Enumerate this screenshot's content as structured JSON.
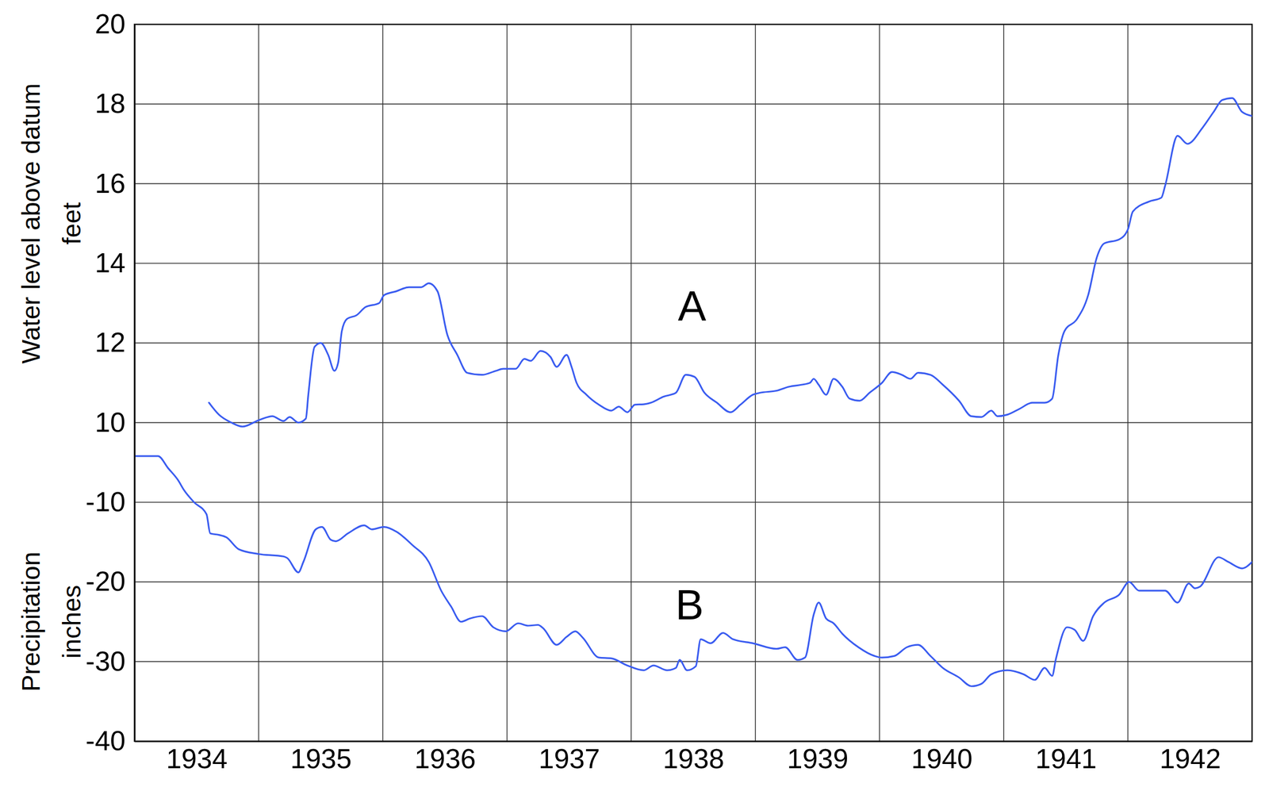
{
  "chart_data": {
    "type": "line",
    "ylabel": [
      "Water level above datum",
      "feet"
    ],
    "y2label": [
      "Precipitation",
      "inches"
    ],
    "xlim": [
      1934,
      1943
    ],
    "xticks": [
      {
        "value": 1934.5,
        "label": "1934"
      },
      {
        "value": 1935.5,
        "label": "1935"
      },
      {
        "value": 1936.5,
        "label": "1936"
      },
      {
        "value": 1937.5,
        "label": "1937"
      },
      {
        "value": 1938.5,
        "label": "1938"
      },
      {
        "value": 1939.5,
        "label": "1939"
      },
      {
        "value": 1940.5,
        "label": "1940"
      },
      {
        "value": 1941.5,
        "label": "1941"
      },
      {
        "value": 1942.5,
        "label": "1942"
      }
    ],
    "xgrid": [
      1935,
      1936,
      1937,
      1938,
      1939,
      1940,
      1941,
      1942
    ],
    "ylim": [
      2,
      20
    ],
    "yticks": [
      10,
      12,
      14,
      16,
      18,
      20
    ],
    "y2lim": [
      -40,
      50
    ],
    "y2ticks": [
      -10,
      -20,
      -30,
      -40
    ],
    "grid": true,
    "annotations": [
      {
        "text": "A",
        "x": 1938.49,
        "y": 12.93
      },
      {
        "text": "B",
        "x": 1938.47,
        "y": -22.9,
        "axis": "y2"
      }
    ],
    "series": [
      {
        "color": "#3a5cf0",
        "x": [
          1934.6,
          1934.68,
          1934.78,
          1934.87,
          1935.0,
          1935.11,
          1935.2,
          1935.25,
          1935.32,
          1935.38,
          1935.4,
          1935.45,
          1935.5,
          1935.56,
          1935.61,
          1935.64,
          1935.67,
          1935.71,
          1935.79,
          1935.86,
          1935.97,
          1936.01,
          1936.11,
          1936.21,
          1936.31,
          1936.37,
          1936.44,
          1936.52,
          1936.6,
          1936.68,
          1936.8,
          1936.91,
          1936.97,
          1937.07,
          1937.14,
          1937.19,
          1937.27,
          1937.35,
          1937.4,
          1937.48,
          1937.52,
          1937.56,
          1937.64,
          1937.74,
          1937.84,
          1937.9,
          1937.97,
          1938.03,
          1938.1,
          1938.16,
          1938.26,
          1938.36,
          1938.44,
          1938.51,
          1938.59,
          1938.69,
          1938.8,
          1938.88,
          1938.98,
          1939.04,
          1939.17,
          1939.27,
          1939.37,
          1939.44,
          1939.47,
          1939.51,
          1939.57,
          1939.63,
          1939.7,
          1939.76,
          1939.84,
          1939.92,
          1940.02,
          1940.1,
          1940.18,
          1940.25,
          1940.31,
          1940.41,
          1940.51,
          1940.64,
          1940.74,
          1940.82,
          1940.9,
          1940.95,
          1941.03,
          1941.13,
          1941.23,
          1941.33,
          1941.39,
          1941.44,
          1941.49,
          1941.59,
          1941.68,
          1941.75,
          1941.81,
          1941.93,
          1942.0,
          1942.04,
          1942.17,
          1942.27,
          1942.3,
          1942.4,
          1942.48,
          1942.6,
          1942.69,
          1942.76,
          1942.84,
          1942.92,
          1943.0
        ],
        "values": [
          10.5,
          10.2,
          10.0,
          9.9,
          10.06,
          10.16,
          10.04,
          10.14,
          10.0,
          10.1,
          10.7,
          11.9,
          12.0,
          11.7,
          11.3,
          11.5,
          12.3,
          12.6,
          12.7,
          12.9,
          13.0,
          13.2,
          13.3,
          13.4,
          13.4,
          13.5,
          13.3,
          12.2,
          11.7,
          11.25,
          11.2,
          11.3,
          11.35,
          11.35,
          11.6,
          11.55,
          11.8,
          11.65,
          11.4,
          11.7,
          11.4,
          11.0,
          10.7,
          10.45,
          10.3,
          10.4,
          10.26,
          10.45,
          10.46,
          10.5,
          10.65,
          10.75,
          11.2,
          11.15,
          10.75,
          10.5,
          10.26,
          10.45,
          10.7,
          10.75,
          10.8,
          10.9,
          10.95,
          11.0,
          11.1,
          10.95,
          10.7,
          11.1,
          10.9,
          10.6,
          10.55,
          10.75,
          11.0,
          11.27,
          11.2,
          11.1,
          11.25,
          11.2,
          10.95,
          10.55,
          10.16,
          10.14,
          10.3,
          10.16,
          10.2,
          10.35,
          10.5,
          10.5,
          10.6,
          11.7,
          12.3,
          12.6,
          13.2,
          14.15,
          14.5,
          14.6,
          14.85,
          15.3,
          15.55,
          15.65,
          15.95,
          17.2,
          17.0,
          17.4,
          17.8,
          18.1,
          18.15,
          17.8,
          17.7
        ]
      },
      {
        "color": "#3a5cf0",
        "axis": "y2",
        "x": [
          1934.0,
          1934.19,
          1934.27,
          1934.35,
          1934.4,
          1934.48,
          1934.58,
          1934.61,
          1934.68,
          1934.74,
          1934.84,
          1935.0,
          1935.2,
          1935.23,
          1935.32,
          1935.36,
          1935.46,
          1935.51,
          1935.58,
          1935.62,
          1935.72,
          1935.85,
          1935.91,
          1936.01,
          1936.11,
          1936.24,
          1936.37,
          1936.47,
          1936.55,
          1936.63,
          1936.7,
          1936.8,
          1936.89,
          1936.99,
          1937.09,
          1937.17,
          1937.25,
          1937.29,
          1937.4,
          1937.48,
          1937.55,
          1937.61,
          1937.74,
          1937.84,
          1937.97,
          1938.1,
          1938.18,
          1938.29,
          1938.36,
          1938.39,
          1938.45,
          1938.52,
          1938.56,
          1938.64,
          1938.74,
          1938.82,
          1938.98,
          1939.17,
          1939.24,
          1939.34,
          1939.4,
          1939.47,
          1939.51,
          1939.57,
          1939.63,
          1939.7,
          1939.83,
          1939.96,
          1940.02,
          1940.12,
          1940.22,
          1940.31,
          1940.41,
          1940.51,
          1940.64,
          1940.74,
          1940.82,
          1940.9,
          1941.03,
          1941.16,
          1941.25,
          1941.33,
          1941.39,
          1941.42,
          1941.51,
          1941.57,
          1941.64,
          1941.72,
          1941.81,
          1941.93,
          1942.01,
          1942.09,
          1942.3,
          1942.4,
          1942.49,
          1942.54,
          1942.58,
          1942.73,
          1942.81,
          1942.92,
          1943.0
        ],
        "values": [
          -4.2,
          -4.2,
          -5.7,
          -7.2,
          -8.5,
          -10.0,
          -11.5,
          -13.9,
          -14.1,
          -14.4,
          -15.9,
          -16.5,
          -16.8,
          -17.0,
          -18.8,
          -17.5,
          -13.4,
          -13.1,
          -14.7,
          -14.9,
          -13.9,
          -12.9,
          -13.4,
          -13.1,
          -13.7,
          -15.4,
          -17.5,
          -21.1,
          -23.1,
          -25.0,
          -24.6,
          -24.3,
          -25.7,
          -26.2,
          -25.2,
          -25.5,
          -25.4,
          -25.8,
          -27.9,
          -26.9,
          -26.2,
          -27.0,
          -29.5,
          -29.6,
          -30.5,
          -31.1,
          -30.5,
          -31.1,
          -30.8,
          -29.8,
          -31.1,
          -30.6,
          -27.2,
          -27.7,
          -26.4,
          -27.2,
          -27.7,
          -28.4,
          -28.2,
          -29.8,
          -29.5,
          -24.1,
          -22.6,
          -24.6,
          -25.2,
          -26.5,
          -28.2,
          -29.3,
          -29.5,
          -29.3,
          -28.2,
          -27.9,
          -29.3,
          -30.8,
          -32.0,
          -33.1,
          -32.8,
          -31.6,
          -31.1,
          -31.6,
          -32.3,
          -30.8,
          -31.8,
          -29.7,
          -25.7,
          -26.0,
          -27.4,
          -24.3,
          -22.6,
          -21.6,
          -20.0,
          -21.1,
          -21.1,
          -22.6,
          -20.2,
          -20.8,
          -20.6,
          -16.9,
          -17.5,
          -18.3,
          -17.5
        ]
      }
    ]
  }
}
